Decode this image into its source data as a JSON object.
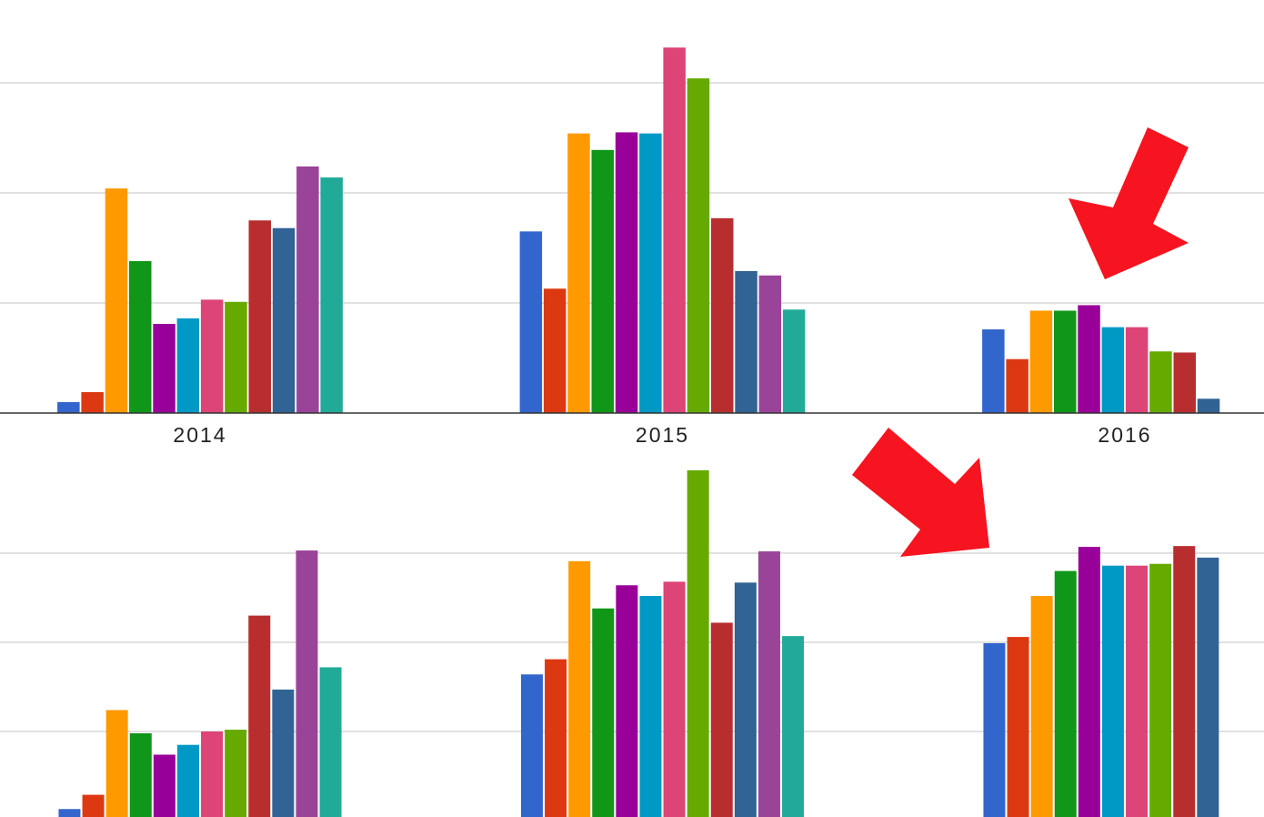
{
  "chart_data": [
    {
      "type": "bar",
      "categories": [
        "2014",
        "2015",
        "2016"
      ],
      "series": [
        {
          "color": "#3366cc",
          "values": [
            0.1,
            1.65,
            0.76
          ]
        },
        {
          "color": "#dc3912",
          "values": [
            0.19,
            1.13,
            0.49
          ]
        },
        {
          "color": "#ff9900",
          "values": [
            2.04,
            2.54,
            0.93
          ]
        },
        {
          "color": "#109618",
          "values": [
            1.38,
            2.39,
            0.93
          ]
        },
        {
          "color": "#990099",
          "values": [
            0.81,
            2.55,
            0.98
          ]
        },
        {
          "color": "#0099c6",
          "values": [
            0.86,
            2.54,
            0.78
          ]
        },
        {
          "color": "#dd4477",
          "values": [
            1.03,
            3.32,
            0.78
          ]
        },
        {
          "color": "#66aa00",
          "values": [
            1.01,
            3.04,
            0.56
          ]
        },
        {
          "color": "#b82e2e",
          "values": [
            1.75,
            1.77,
            0.55
          ]
        },
        {
          "color": "#316395",
          "values": [
            1.68,
            1.29,
            0.13
          ]
        },
        {
          "color": "#994499",
          "values": [
            2.24,
            1.25,
            null
          ]
        },
        {
          "color": "#22aa99",
          "values": [
            2.14,
            0.94,
            null
          ]
        }
      ],
      "ylim": [
        0,
        3.5
      ],
      "yticks": [
        1,
        2,
        3
      ],
      "grid": true
    },
    {
      "type": "bar",
      "categories": [
        null,
        null,
        null
      ],
      "series": [
        {
          "color": "#3366cc",
          "values": [
            0.13,
            1.64,
            1.99
          ]
        },
        {
          "color": "#dc3912",
          "values": [
            0.29,
            1.81,
            2.06
          ]
        },
        {
          "color": "#ff9900",
          "values": [
            1.24,
            2.91,
            2.52
          ]
        },
        {
          "color": "#109618",
          "values": [
            0.98,
            2.38,
            2.8
          ]
        },
        {
          "color": "#990099",
          "values": [
            0.74,
            2.64,
            3.07
          ]
        },
        {
          "color": "#0099c6",
          "values": [
            0.85,
            2.52,
            2.86
          ]
        },
        {
          "color": "#dd4477",
          "values": [
            1.0,
            2.68,
            2.86
          ]
        },
        {
          "color": "#66aa00",
          "values": [
            1.02,
            3.93,
            2.88
          ]
        },
        {
          "color": "#b82e2e",
          "values": [
            2.3,
            2.22,
            3.08
          ]
        },
        {
          "color": "#316395",
          "values": [
            1.47,
            2.67,
            2.95
          ]
        },
        {
          "color": "#994499",
          "values": [
            3.03,
            3.02,
            null
          ]
        },
        {
          "color": "#22aa99",
          "values": [
            1.72,
            2.07,
            null
          ]
        }
      ],
      "ylim": [
        0,
        4.1
      ],
      "yticks": [
        1,
        2,
        3
      ],
      "grid": true
    }
  ]
}
